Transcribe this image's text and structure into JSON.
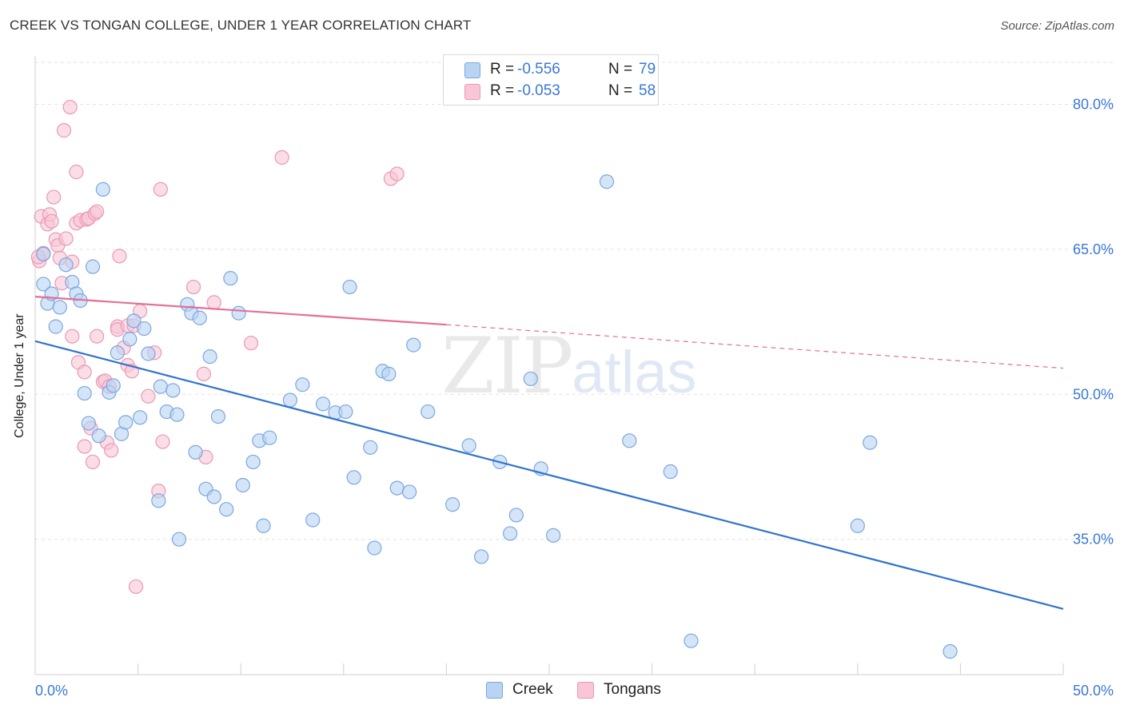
{
  "title": "CREEK VS TONGAN COLLEGE, UNDER 1 YEAR CORRELATION CHART",
  "source": "Source: ZipAtlas.com",
  "watermark": {
    "zip": "ZIP",
    "atlas": "atlas"
  },
  "legend": {
    "rows": [
      {
        "series": "Creek",
        "r_label": "R =",
        "r_value": "-0.556",
        "n_label": "N =",
        "n_value": "79"
      },
      {
        "series": "Tongans",
        "r_label": "R =",
        "r_value": "-0.053",
        "n_label": "N =",
        "n_value": "58"
      }
    ]
  },
  "bottom_legend": [
    "Creek",
    "Tongans"
  ],
  "colors": {
    "creek_fill": "#b9d3f3",
    "creek_stroke": "#7aa7e0",
    "creek_line": "#2f73d0",
    "tongan_fill": "#f8c6d6",
    "tongan_stroke": "#eb98b4",
    "tongan_line": "#e46f96",
    "axis_text": "#3a78d6",
    "grid": "#e3e3e3"
  },
  "chart_data": {
    "type": "scatter",
    "title": "CREEK VS TONGAN COLLEGE, UNDER 1 YEAR CORRELATION CHART",
    "xlabel": "",
    "ylabel": "College, Under 1 year",
    "xlim": [
      0,
      50
    ],
    "ylim": [
      21,
      85
    ],
    "x_tick_labels": [
      "0.0%",
      "50.0%"
    ],
    "y_ticks": [
      35,
      50,
      65,
      80
    ],
    "y_tick_labels": [
      "35.0%",
      "50.0%",
      "65.0%",
      "80.0%"
    ],
    "grid": true,
    "legend_position": "top-center",
    "series": [
      {
        "name": "Creek",
        "r": -0.556,
        "n": 79,
        "trend": {
          "x": [
            0,
            50
          ],
          "y": [
            55.5,
            27.8
          ],
          "style": "solid"
        },
        "points": [
          [
            0.4,
            64.5
          ],
          [
            0.4,
            61.4
          ],
          [
            0.6,
            59.4
          ],
          [
            0.8,
            60.4
          ],
          [
            1.0,
            57.0
          ],
          [
            1.2,
            59.0
          ],
          [
            1.5,
            63.4
          ],
          [
            1.8,
            61.6
          ],
          [
            2.0,
            60.4
          ],
          [
            2.2,
            59.7
          ],
          [
            2.4,
            50.1
          ],
          [
            2.6,
            47.0
          ],
          [
            2.8,
            63.2
          ],
          [
            3.1,
            45.7
          ],
          [
            3.3,
            71.2
          ],
          [
            3.6,
            50.2
          ],
          [
            3.8,
            50.9
          ],
          [
            4.0,
            54.3
          ],
          [
            4.2,
            45.9
          ],
          [
            4.4,
            47.1
          ],
          [
            4.6,
            55.7
          ],
          [
            4.8,
            57.6
          ],
          [
            5.1,
            47.6
          ],
          [
            5.3,
            56.8
          ],
          [
            5.5,
            54.2
          ],
          [
            6.0,
            39.0
          ],
          [
            6.1,
            50.8
          ],
          [
            6.4,
            48.2
          ],
          [
            6.7,
            50.4
          ],
          [
            6.9,
            47.9
          ],
          [
            7.0,
            35.0
          ],
          [
            7.4,
            59.3
          ],
          [
            7.6,
            58.4
          ],
          [
            7.8,
            44.0
          ],
          [
            8.0,
            57.9
          ],
          [
            8.3,
            40.2
          ],
          [
            8.5,
            53.9
          ],
          [
            8.7,
            39.4
          ],
          [
            8.9,
            47.7
          ],
          [
            9.3,
            38.1
          ],
          [
            9.5,
            62.0
          ],
          [
            9.9,
            58.4
          ],
          [
            10.1,
            40.6
          ],
          [
            10.6,
            43.0
          ],
          [
            10.9,
            45.2
          ],
          [
            11.1,
            36.4
          ],
          [
            11.4,
            45.5
          ],
          [
            12.4,
            49.4
          ],
          [
            13.0,
            51.0
          ],
          [
            13.5,
            37.0
          ],
          [
            14.0,
            49.0
          ],
          [
            14.6,
            48.1
          ],
          [
            15.1,
            48.2
          ],
          [
            15.3,
            61.1
          ],
          [
            15.5,
            41.4
          ],
          [
            16.3,
            44.5
          ],
          [
            16.5,
            34.1
          ],
          [
            16.9,
            52.4
          ],
          [
            17.2,
            52.1
          ],
          [
            17.6,
            40.3
          ],
          [
            18.2,
            39.9
          ],
          [
            18.4,
            55.1
          ],
          [
            19.1,
            48.2
          ],
          [
            20.3,
            38.6
          ],
          [
            21.1,
            44.7
          ],
          [
            21.7,
            33.2
          ],
          [
            22.6,
            43.0
          ],
          [
            23.1,
            35.6
          ],
          [
            23.4,
            37.5
          ],
          [
            24.1,
            51.6
          ],
          [
            24.6,
            42.3
          ],
          [
            25.2,
            35.4
          ],
          [
            27.8,
            72.0
          ],
          [
            28.9,
            45.2
          ],
          [
            30.9,
            42.0
          ],
          [
            31.9,
            24.5
          ],
          [
            40.0,
            36.4
          ],
          [
            40.6,
            45.0
          ],
          [
            44.5,
            23.4
          ]
        ]
      },
      {
        "name": "Tongans",
        "r": -0.053,
        "n": 58,
        "trend": {
          "x": [
            0,
            20,
            50
          ],
          "y": [
            60.1,
            57.2,
            52.7
          ],
          "style": "solid-then-dashed"
        },
        "points": [
          [
            0.2,
            63.8
          ],
          [
            0.3,
            68.4
          ],
          [
            0.4,
            64.6
          ],
          [
            0.6,
            67.6
          ],
          [
            0.7,
            68.6
          ],
          [
            0.8,
            67.9
          ],
          [
            0.9,
            70.4
          ],
          [
            1.0,
            66.0
          ],
          [
            1.1,
            65.4
          ],
          [
            1.2,
            64.1
          ],
          [
            1.3,
            61.5
          ],
          [
            1.4,
            77.3
          ],
          [
            1.5,
            66.1
          ],
          [
            1.7,
            79.7
          ],
          [
            1.8,
            63.7
          ],
          [
            1.8,
            56.0
          ],
          [
            2.0,
            67.7
          ],
          [
            2.0,
            73.0
          ],
          [
            2.1,
            53.3
          ],
          [
            2.2,
            68.0
          ],
          [
            2.4,
            44.6
          ],
          [
            2.4,
            52.3
          ],
          [
            2.5,
            68.1
          ],
          [
            2.6,
            68.2
          ],
          [
            2.7,
            46.5
          ],
          [
            2.8,
            43.0
          ],
          [
            2.9,
            68.7
          ],
          [
            3.0,
            56.0
          ],
          [
            3.0,
            68.9
          ],
          [
            3.3,
            51.3
          ],
          [
            3.4,
            51.4
          ],
          [
            3.5,
            45.0
          ],
          [
            3.6,
            50.8
          ],
          [
            3.7,
            44.2
          ],
          [
            4.0,
            57.0
          ],
          [
            4.0,
            56.7
          ],
          [
            4.1,
            64.3
          ],
          [
            4.3,
            54.8
          ],
          [
            4.5,
            57.1
          ],
          [
            4.5,
            53.0
          ],
          [
            4.7,
            52.4
          ],
          [
            4.8,
            57.1
          ],
          [
            4.9,
            30.1
          ],
          [
            5.1,
            58.6
          ],
          [
            5.5,
            49.8
          ],
          [
            5.8,
            54.3
          ],
          [
            6.1,
            71.2
          ],
          [
            6.0,
            40.0
          ],
          [
            6.2,
            45.1
          ],
          [
            7.7,
            61.1
          ],
          [
            8.2,
            52.1
          ],
          [
            8.3,
            43.5
          ],
          [
            8.7,
            59.5
          ],
          [
            10.5,
            55.3
          ],
          [
            12.0,
            74.5
          ],
          [
            17.3,
            72.3
          ],
          [
            17.6,
            72.8
          ],
          [
            0.15,
            64.2
          ]
        ]
      }
    ]
  }
}
